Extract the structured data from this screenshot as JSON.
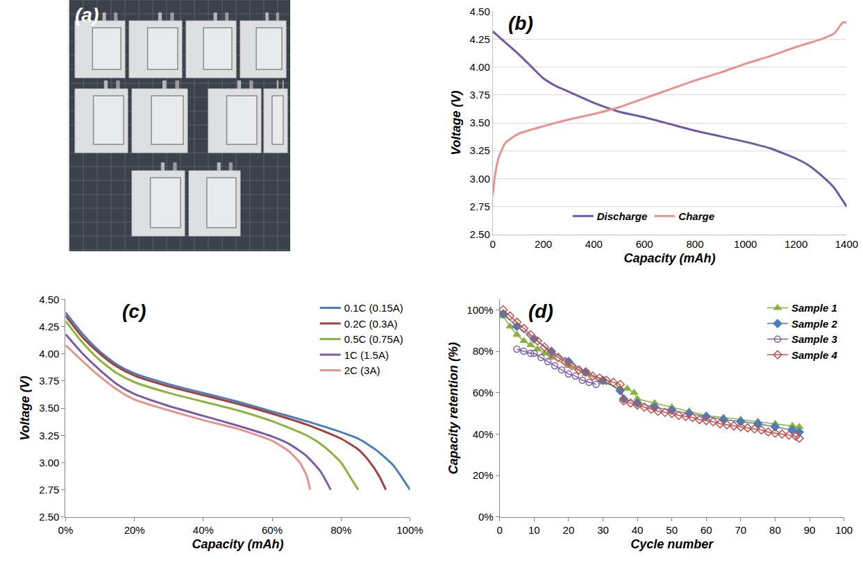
{
  "image_panel": {
    "label": "(a)"
  },
  "chart_data": [
    {
      "type": "line",
      "title": "(b)",
      "xlabel": "Capacity (mAh)",
      "ylabel": "Voltage (V)",
      "xlim": [
        0,
        1400
      ],
      "xticks": [
        0,
        200,
        400,
        600,
        800,
        1000,
        1200,
        1400
      ],
      "ylim": [
        2.5,
        4.5
      ],
      "yticks": [
        {
          "value": 2.5,
          "label": "2.50"
        },
        {
          "value": 2.75,
          "label": "2.75"
        },
        {
          "value": 3,
          "label": "3.00"
        },
        {
          "value": 3.25,
          "label": "3.25"
        },
        {
          "value": 3.5,
          "label": "3.50"
        },
        {
          "value": 3.75,
          "label": "3.75"
        },
        {
          "value": 4,
          "label": "4.00"
        },
        {
          "value": 4.25,
          "label": "4.25"
        },
        {
          "value": 4.5,
          "label": "4.50"
        }
      ],
      "grid": true,
      "legend": "bottom",
      "series": [
        {
          "name": "Discharge",
          "color": "#6f58a6",
          "x": [
            0,
            50,
            100,
            150,
            200,
            250,
            300,
            400,
            500,
            600,
            700,
            800,
            900,
            1000,
            1100,
            1200,
            1250,
            1300,
            1350,
            1380,
            1400
          ],
          "values": [
            4.32,
            4.22,
            4.12,
            4.01,
            3.9,
            3.83,
            3.78,
            3.68,
            3.6,
            3.55,
            3.49,
            3.43,
            3.38,
            3.33,
            3.27,
            3.18,
            3.12,
            3.03,
            2.92,
            2.82,
            2.75
          ]
        },
        {
          "name": "Charge",
          "color": "#e8928d",
          "x": [
            0,
            10,
            25,
            50,
            100,
            200,
            300,
            400,
            500,
            600,
            700,
            800,
            900,
            1000,
            1100,
            1200,
            1300,
            1350,
            1385,
            1400
          ],
          "values": [
            2.85,
            3.05,
            3.2,
            3.32,
            3.4,
            3.47,
            3.53,
            3.58,
            3.64,
            3.72,
            3.8,
            3.88,
            3.95,
            4.03,
            4.1,
            4.18,
            4.25,
            4.3,
            4.4,
            4.4
          ]
        }
      ]
    },
    {
      "type": "line",
      "title": "(c)",
      "xlabel": "Capacity (mAh)",
      "ylabel": "Voltage (V)",
      "xlim": [
        0,
        100
      ],
      "xticks": [
        {
          "value": 0,
          "label": "0%"
        },
        {
          "value": 20,
          "label": "20%"
        },
        {
          "value": 40,
          "label": "40%"
        },
        {
          "value": 60,
          "label": "60%"
        },
        {
          "value": 80,
          "label": "80%"
        },
        {
          "value": 100,
          "label": "100%"
        }
      ],
      "ylim": [
        2.5,
        4.5
      ],
      "yticks": [
        {
          "value": 2.5,
          "label": "2.50"
        },
        {
          "value": 2.75,
          "label": "2.75"
        },
        {
          "value": 3,
          "label": "3.00"
        },
        {
          "value": 3.25,
          "label": "3.25"
        },
        {
          "value": 3.5,
          "label": "3.50"
        },
        {
          "value": 3.75,
          "label": "3.75"
        },
        {
          "value": 4,
          "label": "4.00"
        },
        {
          "value": 4.25,
          "label": "4.25"
        },
        {
          "value": 4.5,
          "label": "4.50"
        }
      ],
      "grid": false,
      "legend": "top right",
      "series": [
        {
          "name": "0.1C (0.15A)",
          "color": "#4a7ebb",
          "x": [
            0,
            5,
            10,
            15,
            20,
            30,
            40,
            50,
            60,
            70,
            80,
            85,
            90,
            95,
            100
          ],
          "values": [
            4.38,
            4.18,
            4.02,
            3.9,
            3.82,
            3.72,
            3.64,
            3.56,
            3.47,
            3.38,
            3.28,
            3.22,
            3.12,
            2.98,
            2.75
          ]
        },
        {
          "name": "0.2C (0.3A)",
          "color": "#a0403e",
          "x": [
            0,
            5,
            10,
            15,
            20,
            30,
            40,
            50,
            60,
            70,
            80,
            85,
            88,
            91,
            93
          ],
          "values": [
            4.35,
            4.15,
            4.0,
            3.88,
            3.8,
            3.7,
            3.62,
            3.54,
            3.45,
            3.35,
            3.22,
            3.12,
            3.02,
            2.88,
            2.75
          ]
        },
        {
          "name": "0.5C (0.75A)",
          "color": "#8db33f",
          "x": [
            0,
            5,
            10,
            15,
            20,
            30,
            40,
            50,
            60,
            70,
            75,
            80,
            83,
            85
          ],
          "values": [
            4.3,
            4.1,
            3.94,
            3.82,
            3.74,
            3.64,
            3.56,
            3.48,
            3.38,
            3.25,
            3.15,
            3.0,
            2.85,
            2.75
          ]
        },
        {
          "name": "1C (1.5A)",
          "color": "#7b5aa6",
          "x": [
            0,
            5,
            10,
            15,
            20,
            30,
            40,
            50,
            60,
            65,
            70,
            74,
            77
          ],
          "values": [
            4.18,
            4.0,
            3.85,
            3.72,
            3.63,
            3.52,
            3.43,
            3.34,
            3.24,
            3.17,
            3.06,
            2.92,
            2.75
          ]
        },
        {
          "name": "2C (3A)",
          "color": "#e8928d",
          "x": [
            0,
            5,
            10,
            15,
            20,
            30,
            40,
            50,
            60,
            65,
            68,
            70,
            71
          ],
          "values": [
            4.08,
            3.93,
            3.79,
            3.67,
            3.58,
            3.48,
            3.39,
            3.31,
            3.2,
            3.1,
            3.0,
            2.88,
            2.75
          ]
        }
      ]
    },
    {
      "type": "line",
      "title": "(d)",
      "xlabel": "Cycle number",
      "ylabel": "Capacity retention (%)",
      "xlim": [
        0,
        100
      ],
      "xticks": [
        0,
        10,
        20,
        30,
        40,
        50,
        60,
        70,
        80,
        90,
        100
      ],
      "ylim": [
        0,
        105
      ],
      "yticks": [
        {
          "value": 0,
          "label": "0%"
        },
        {
          "value": 20,
          "label": "20%"
        },
        {
          "value": 40,
          "label": "40%"
        },
        {
          "value": 60,
          "label": "60%"
        },
        {
          "value": 80,
          "label": "80%"
        },
        {
          "value": 100,
          "label": "100%"
        }
      ],
      "grid": false,
      "legend": "top right",
      "series": [
        {
          "name": "Sample 1",
          "color": "#8db33f",
          "marker": "triangle",
          "x": [
            1,
            3,
            5,
            7,
            9,
            11,
            13,
            15,
            20,
            25,
            30,
            35,
            37,
            39,
            40,
            45,
            50,
            55,
            60,
            65,
            70,
            75,
            80,
            85,
            87
          ],
          "values": [
            97,
            92,
            88,
            85,
            83,
            81,
            79,
            77,
            73,
            69,
            65,
            62,
            62,
            60,
            57,
            55,
            53,
            51,
            49,
            48,
            47,
            46,
            45,
            44,
            43.5
          ]
        },
        {
          "name": "Sample 2",
          "color": "#4a7ebb",
          "marker": "diamond",
          "x": [
            1,
            5,
            10,
            15,
            20,
            25,
            30,
            35,
            36,
            40,
            45,
            50,
            55,
            60,
            65,
            70,
            75,
            80,
            85,
            87
          ],
          "values": [
            98,
            92,
            86,
            80,
            75,
            70,
            66,
            61,
            57,
            55,
            53,
            51.5,
            50,
            48.5,
            47,
            46,
            45,
            43.5,
            42,
            41
          ]
        },
        {
          "name": "Sample 3",
          "color": "#7b5aa6",
          "marker": "open circle",
          "x": [
            5,
            7,
            9,
            10,
            12,
            14,
            16,
            18,
            20,
            22,
            24,
            26,
            28
          ],
          "values": [
            81,
            80,
            79,
            79,
            77,
            75,
            73,
            71,
            69,
            68,
            66,
            65,
            64
          ]
        },
        {
          "name": "Sample 4",
          "color": "#c0504d",
          "marker": "open diamond",
          "x": [
            1,
            3,
            5,
            7,
            9,
            11,
            13,
            15,
            17,
            19,
            21,
            23,
            25,
            27,
            29,
            31,
            33,
            35,
            36,
            38,
            40,
            42,
            44,
            46,
            48,
            50,
            52,
            54,
            56,
            58,
            60,
            62,
            64,
            66,
            68,
            70,
            72,
            74,
            76,
            78,
            80,
            82,
            84,
            86,
            87
          ],
          "values": [
            100,
            97,
            94,
            91,
            88,
            85,
            82,
            79,
            77,
            75,
            73,
            71,
            70,
            68,
            67,
            66,
            65,
            64,
            56,
            55,
            54,
            53,
            52,
            51,
            50.5,
            50,
            49,
            48.5,
            48,
            47,
            46.5,
            46,
            45,
            44.5,
            44,
            43.5,
            43,
            42.5,
            42,
            41,
            40.5,
            40,
            39.5,
            39,
            38
          ]
        }
      ]
    }
  ]
}
